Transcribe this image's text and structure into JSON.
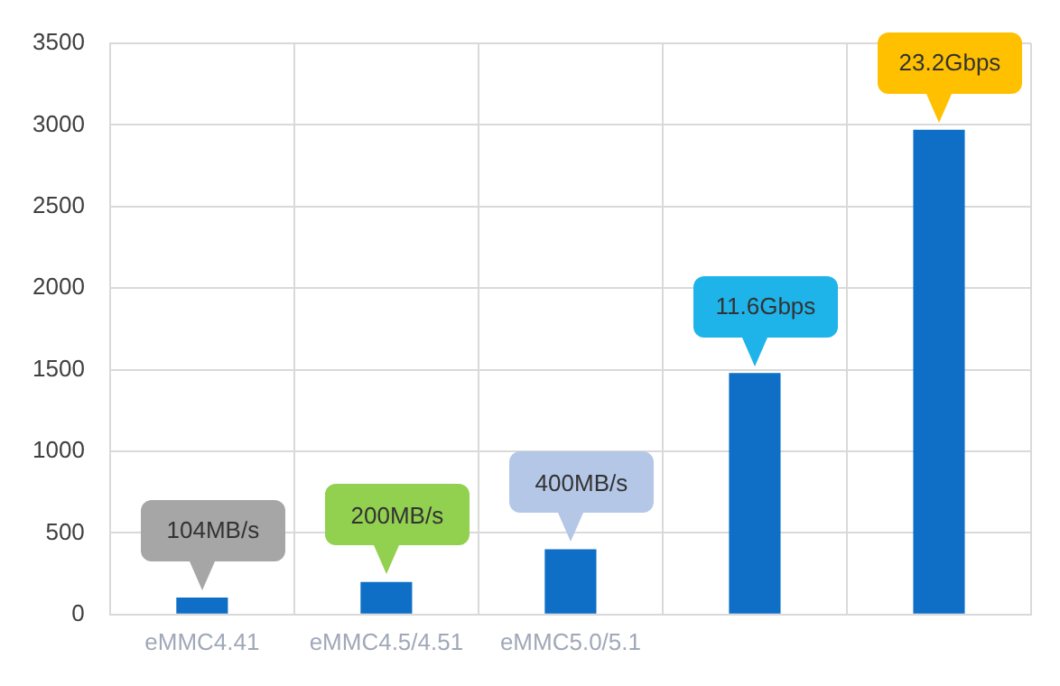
{
  "chart_data": {
    "type": "bar",
    "categories": [
      "eMMC4.41",
      "eMMC4.5/4.51",
      "eMMC5.0/5.1",
      null,
      null
    ],
    "values": [
      104,
      200,
      400,
      1480,
      2970
    ],
    "color": "#0f6fc6",
    "annotations": [
      "104MB/s",
      "200MB/s",
      "400MB/s",
      "11.6Gbps",
      "23.2Gbps"
    ],
    "ylim": [
      0,
      3500
    ],
    "yticks": [
      0,
      500,
      1000,
      1500,
      2000,
      2500,
      3000,
      3500
    ],
    "grid": true
  }
}
